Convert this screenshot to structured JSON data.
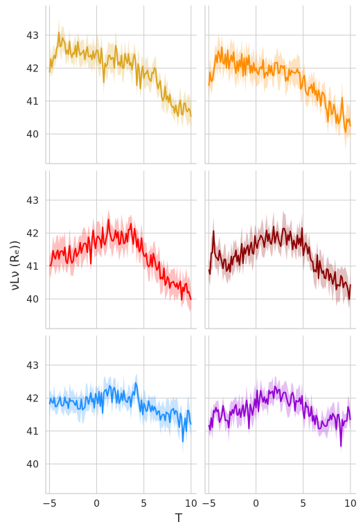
{
  "chart_data": {
    "type": "line",
    "layout": "facet-grid-3x2",
    "xlabel": "T",
    "ylabel": "νLν (Rₑ))",
    "xlim": [
      -5.4,
      10.6
    ],
    "ylim": [
      39.1,
      43.9
    ],
    "xticks": [
      -5,
      0,
      5,
      10
    ],
    "yticks": [
      40,
      41,
      42,
      43
    ],
    "grid": true,
    "panels": [
      {
        "color": "#daa520",
        "noise": 0.38,
        "band": 0.35,
        "seed": 11,
        "x": [
          -5,
          -4,
          -3,
          -2,
          -1,
          0,
          1,
          2,
          3,
          4,
          5,
          6,
          7,
          8,
          9,
          10
        ],
        "y": [
          42.0,
          42.9,
          42.7,
          42.5,
          42.4,
          42.4,
          42.3,
          42.2,
          42.2,
          42.1,
          41.9,
          41.7,
          41.3,
          40.9,
          40.8,
          40.7
        ]
      },
      {
        "color": "#ff8c00",
        "noise": 0.38,
        "band": 0.38,
        "seed": 23,
        "x": [
          -5,
          -4,
          -3,
          -2,
          -1,
          0,
          1,
          2,
          3,
          4,
          5,
          6,
          7,
          8,
          9,
          10
        ],
        "y": [
          41.6,
          42.5,
          42.3,
          42.2,
          42.1,
          42.1,
          42.0,
          42.0,
          41.9,
          41.8,
          41.6,
          41.3,
          41.0,
          40.8,
          40.5,
          40.3
        ]
      },
      {
        "color": "#ff0000",
        "noise": 0.4,
        "band": 0.38,
        "seed": 37,
        "x": [
          -5,
          -4,
          -3,
          -2,
          -1,
          0,
          1,
          2,
          3,
          4,
          5,
          6,
          7,
          8,
          9,
          10
        ],
        "y": [
          41.2,
          41.6,
          41.3,
          41.5,
          41.6,
          41.8,
          41.9,
          41.9,
          41.9,
          41.8,
          41.5,
          41.1,
          40.7,
          40.4,
          40.3,
          40.2
        ]
      },
      {
        "color": "#8b0000",
        "noise": 0.38,
        "band": 0.4,
        "seed": 41,
        "x": [
          -5,
          -4,
          -3,
          -2,
          -1,
          0,
          1,
          2,
          3,
          4,
          5,
          6,
          7,
          8,
          9,
          10
        ],
        "y": [
          41.1,
          41.3,
          41.1,
          41.2,
          41.4,
          41.7,
          41.9,
          41.9,
          41.9,
          41.7,
          41.5,
          41.2,
          40.9,
          40.6,
          40.5,
          40.3
        ]
      },
      {
        "color": "#1e90ff",
        "noise": 0.32,
        "band": 0.33,
        "seed": 53,
        "x": [
          -5,
          -4,
          -3,
          -2,
          -1,
          0,
          1,
          2,
          3,
          4,
          5,
          6,
          7,
          8,
          9,
          10
        ],
        "y": [
          41.9,
          41.9,
          41.9,
          41.8,
          41.9,
          42.0,
          42.1,
          42.1,
          42.0,
          41.9,
          41.8,
          41.6,
          41.5,
          41.5,
          41.4,
          41.4
        ]
      },
      {
        "color": "#9400d3",
        "noise": 0.34,
        "band": 0.33,
        "seed": 67,
        "x": [
          -5,
          -4,
          -3,
          -2,
          -1,
          0,
          1,
          2,
          3,
          4,
          5,
          6,
          7,
          8,
          9,
          10
        ],
        "y": [
          41.3,
          41.5,
          41.4,
          41.5,
          41.7,
          41.9,
          42.0,
          42.1,
          42.0,
          41.9,
          41.7,
          41.5,
          41.3,
          41.3,
          41.3,
          41.4
        ]
      }
    ]
  }
}
